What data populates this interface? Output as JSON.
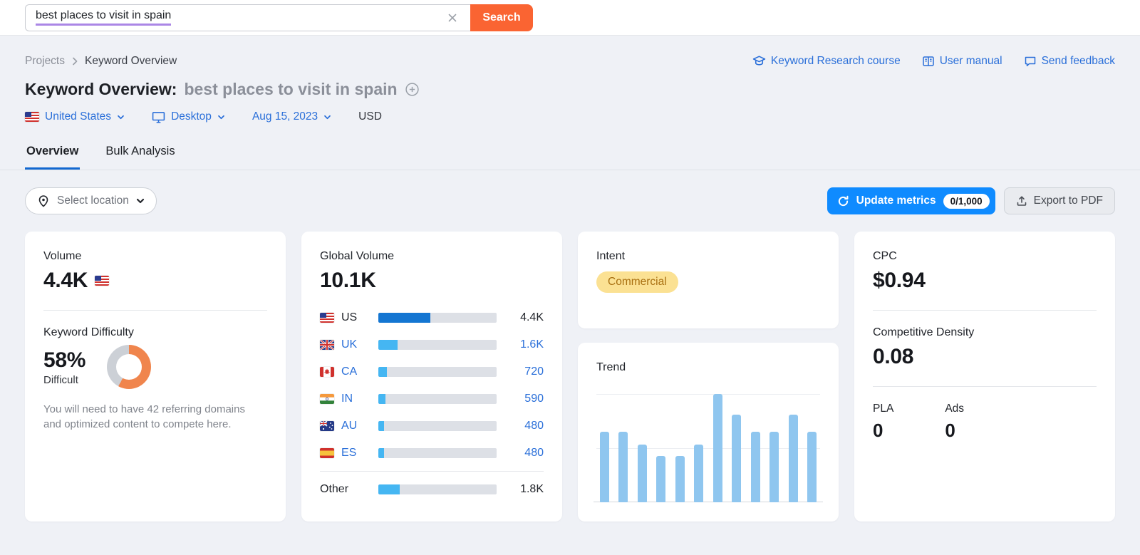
{
  "topbar": {
    "search_value": "best places to visit in spain",
    "search_button": "Search"
  },
  "breadcrumb": {
    "root": "Projects",
    "current": "Keyword Overview"
  },
  "header_links": {
    "course": "Keyword Research course",
    "manual": "User manual",
    "feedback": "Send feedback"
  },
  "title": {
    "prefix": "Keyword Overview:",
    "keyword": "best places to visit in spain"
  },
  "filters": {
    "location": "United States",
    "device": "Desktop",
    "date": "Aug 15, 2023",
    "currency": "USD"
  },
  "tabs": {
    "overview": "Overview",
    "bulk": "Bulk Analysis"
  },
  "toolbar": {
    "select_location": "Select location",
    "update_metrics": "Update metrics",
    "quota": "0/1,000",
    "export_pdf": "Export to PDF"
  },
  "volume_card": {
    "label": "Volume",
    "value": "4.4K",
    "kd_label": "Keyword Difficulty",
    "kd_percent": "58%",
    "kd_level": "Difficult",
    "kd_note": "You will need to have 42 referring domains and optimized content to compete here."
  },
  "global_volume": {
    "label": "Global Volume",
    "value": "10.1K",
    "rows": [
      {
        "code": "US",
        "flag": "us",
        "value": "4.4K",
        "pct": 44,
        "link": false
      },
      {
        "code": "UK",
        "flag": "uk",
        "value": "1.6K",
        "pct": 16,
        "link": true
      },
      {
        "code": "CA",
        "flag": "ca",
        "value": "720",
        "pct": 7,
        "link": true
      },
      {
        "code": "IN",
        "flag": "in",
        "value": "590",
        "pct": 6,
        "link": true
      },
      {
        "code": "AU",
        "flag": "au",
        "value": "480",
        "pct": 5,
        "link": true
      },
      {
        "code": "ES",
        "flag": "es",
        "value": "480",
        "pct": 5,
        "link": true
      }
    ],
    "other": {
      "code": "Other",
      "value": "1.8K",
      "pct": 18,
      "link": false
    }
  },
  "intent_card": {
    "label": "Intent",
    "badge": "Commercial"
  },
  "trend_card": {
    "label": "Trend"
  },
  "cpc_card": {
    "cpc_label": "CPC",
    "cpc_value": "$0.94",
    "cd_label": "Competitive Density",
    "cd_value": "0.08",
    "pla_label": "PLA",
    "pla_value": "0",
    "ads_label": "Ads",
    "ads_value": "0"
  },
  "chart_data": [
    {
      "type": "bar",
      "title": "Trend",
      "categories": [
        "",
        "",
        "",
        "",
        "",
        "",
        "",
        "",
        "",
        "",
        "",
        ""
      ],
      "values": [
        65,
        65,
        53,
        43,
        43,
        53,
        100,
        81,
        65,
        65,
        81,
        65
      ],
      "ylabel": "relative search interest (% of tallest bar)",
      "note": "12 bars, no axis tick labels shown; gridlines at 50% and 100%",
      "bar_color": "#8fc6ef"
    },
    {
      "type": "bar",
      "title": "Global Volume",
      "categories": [
        "US",
        "UK",
        "CA",
        "IN",
        "AU",
        "ES",
        "Other"
      ],
      "values": [
        4400,
        1600,
        720,
        590,
        480,
        480,
        1800
      ],
      "labels": [
        "4.4K",
        "1.6K",
        "720",
        "590",
        "480",
        "480",
        "1.8K"
      ],
      "total_label": "10.1K"
    },
    {
      "type": "pie",
      "title": "Keyword Difficulty",
      "labels": [
        "Difficult",
        "Remaining"
      ],
      "values": [
        58,
        42
      ],
      "colors": [
        "#f0854d",
        "#ccd0d6"
      ]
    }
  ],
  "colors": {
    "accent_blue": "#0f8bff",
    "link_blue": "#2a6fd9",
    "search_orange": "#fa6432",
    "kd_orange": "#f0854d",
    "donut_gray": "#ccd0d6",
    "bar_us": "#1476d2",
    "bar_light": "#45b6f2",
    "trend_bar": "#8fc6ef",
    "intent_bg": "#fbe193",
    "intent_text": "#a86f10",
    "underline_purple": "#ab87e6"
  }
}
